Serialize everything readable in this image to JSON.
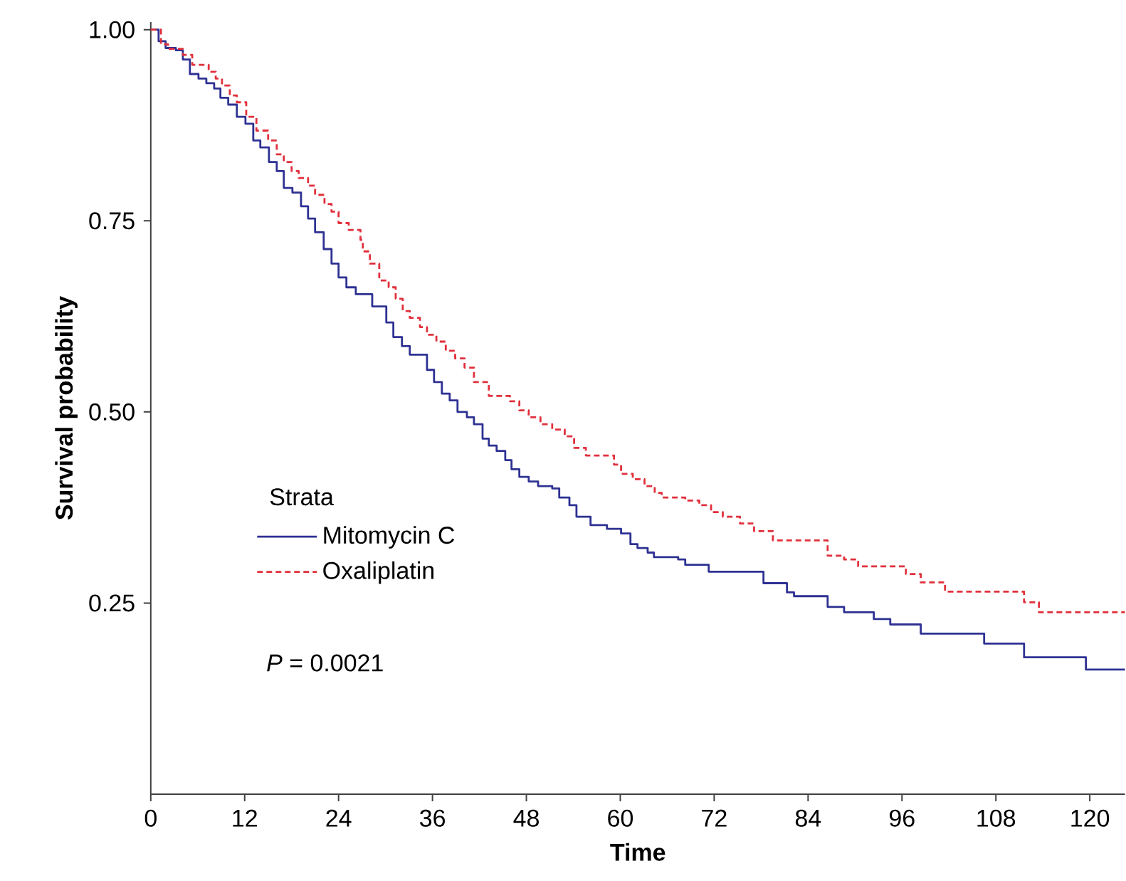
{
  "chart_data": {
    "type": "step",
    "xlabel": "Time",
    "ylabel": "Survival probability",
    "legend_title": "Strata",
    "legend": "left",
    "grid": false,
    "marker": "none",
    "xlim": [
      0,
      124.5
    ],
    "ylim": [
      0,
      1.01
    ],
    "xticks": [
      0,
      12,
      24,
      36,
      48,
      60,
      72,
      84,
      96,
      108,
      120
    ],
    "yticks": [
      {
        "value": 0.25,
        "label": "0.25"
      },
      {
        "value": 0.5,
        "label": "0.50"
      },
      {
        "value": 0.75,
        "label": "0.75"
      },
      {
        "value": 1.0,
        "label": "1.00"
      }
    ],
    "annotations": [
      "*P* = 0.0021"
    ],
    "series": [
      {
        "name": "Mitomycin C",
        "color": "#2e3192",
        "line_style": "solid",
        "x": [
          0,
          1.0,
          1.9,
          3.2,
          4.1,
          5.0,
          6.1,
          7.1,
          8.1,
          8.9,
          9.9,
          11.0,
          12.1,
          13.1,
          14.0,
          15.1,
          16.1,
          17.0,
          18.1,
          19.2,
          20.1,
          21.0,
          22.1,
          23.1,
          24.0,
          25.0,
          26.2,
          28.3,
          30.1,
          31.0,
          32.1,
          33.1,
          35.3,
          36.2,
          37.2,
          38.2,
          39.2,
          40.4,
          41.3,
          42.4,
          43.2,
          44.2,
          45.3,
          46.1,
          47.1,
          48.3,
          49.5,
          51.3,
          52.2,
          53.5,
          54.4,
          56.2,
          58.3,
          60.1,
          61.3,
          62.2,
          63.5,
          64.3,
          67.4,
          68.3,
          71.3,
          78.3,
          81.3,
          82.2,
          86.5,
          88.6,
          92.4,
          94.5,
          98.4,
          106.5,
          111.6,
          119.5,
          124.5
        ],
        "values": [
          1.0,
          0.985,
          0.976,
          0.973,
          0.961,
          0.942,
          0.936,
          0.93,
          0.923,
          0.911,
          0.902,
          0.886,
          0.877,
          0.855,
          0.846,
          0.827,
          0.815,
          0.793,
          0.787,
          0.769,
          0.753,
          0.735,
          0.713,
          0.694,
          0.676,
          0.663,
          0.654,
          0.638,
          0.617,
          0.598,
          0.586,
          0.575,
          0.555,
          0.539,
          0.524,
          0.515,
          0.5,
          0.493,
          0.484,
          0.465,
          0.456,
          0.449,
          0.437,
          0.425,
          0.415,
          0.409,
          0.403,
          0.4,
          0.388,
          0.378,
          0.363,
          0.352,
          0.347,
          0.341,
          0.327,
          0.322,
          0.316,
          0.31,
          0.307,
          0.3,
          0.291,
          0.276,
          0.264,
          0.259,
          0.245,
          0.238,
          0.229,
          0.222,
          0.21,
          0.197,
          0.179,
          0.163,
          0.163
        ]
      },
      {
        "name": "Oxaliplatin",
        "color": "#e0303c",
        "line_style": "dashed",
        "x": [
          0,
          1.3,
          2.2,
          4.1,
          5.3,
          7.4,
          8.3,
          9.1,
          10.1,
          11.0,
          12.2,
          13.5,
          15.0,
          16.1,
          17.0,
          18.0,
          18.9,
          20.1,
          21.0,
          22.2,
          23.1,
          24.0,
          25.3,
          26.8,
          27.1,
          28.0,
          29.2,
          30.4,
          31.3,
          32.2,
          33.1,
          34.4,
          35.3,
          36.5,
          37.7,
          38.9,
          40.1,
          41.3,
          43.2,
          45.9,
          47.1,
          48.3,
          49.8,
          51.3,
          52.9,
          54.1,
          55.6,
          59.2,
          60.1,
          61.6,
          63.1,
          64.4,
          65.3,
          68.3,
          70.1,
          71.6,
          73.1,
          75.3,
          77.1,
          79.5,
          86.5,
          88.6,
          90.4,
          96.5,
          98.4,
          101.5,
          111.6,
          113.5,
          124.5
        ],
        "values": [
          1.0,
          0.981,
          0.975,
          0.967,
          0.954,
          0.945,
          0.936,
          0.927,
          0.914,
          0.905,
          0.886,
          0.868,
          0.855,
          0.837,
          0.827,
          0.815,
          0.806,
          0.796,
          0.784,
          0.772,
          0.762,
          0.747,
          0.738,
          0.725,
          0.71,
          0.694,
          0.672,
          0.663,
          0.648,
          0.632,
          0.623,
          0.611,
          0.601,
          0.592,
          0.58,
          0.57,
          0.558,
          0.539,
          0.521,
          0.514,
          0.502,
          0.493,
          0.484,
          0.477,
          0.468,
          0.453,
          0.443,
          0.431,
          0.419,
          0.412,
          0.403,
          0.394,
          0.388,
          0.384,
          0.378,
          0.369,
          0.363,
          0.354,
          0.344,
          0.332,
          0.312,
          0.307,
          0.298,
          0.288,
          0.277,
          0.265,
          0.251,
          0.238,
          0.238
        ]
      }
    ]
  }
}
